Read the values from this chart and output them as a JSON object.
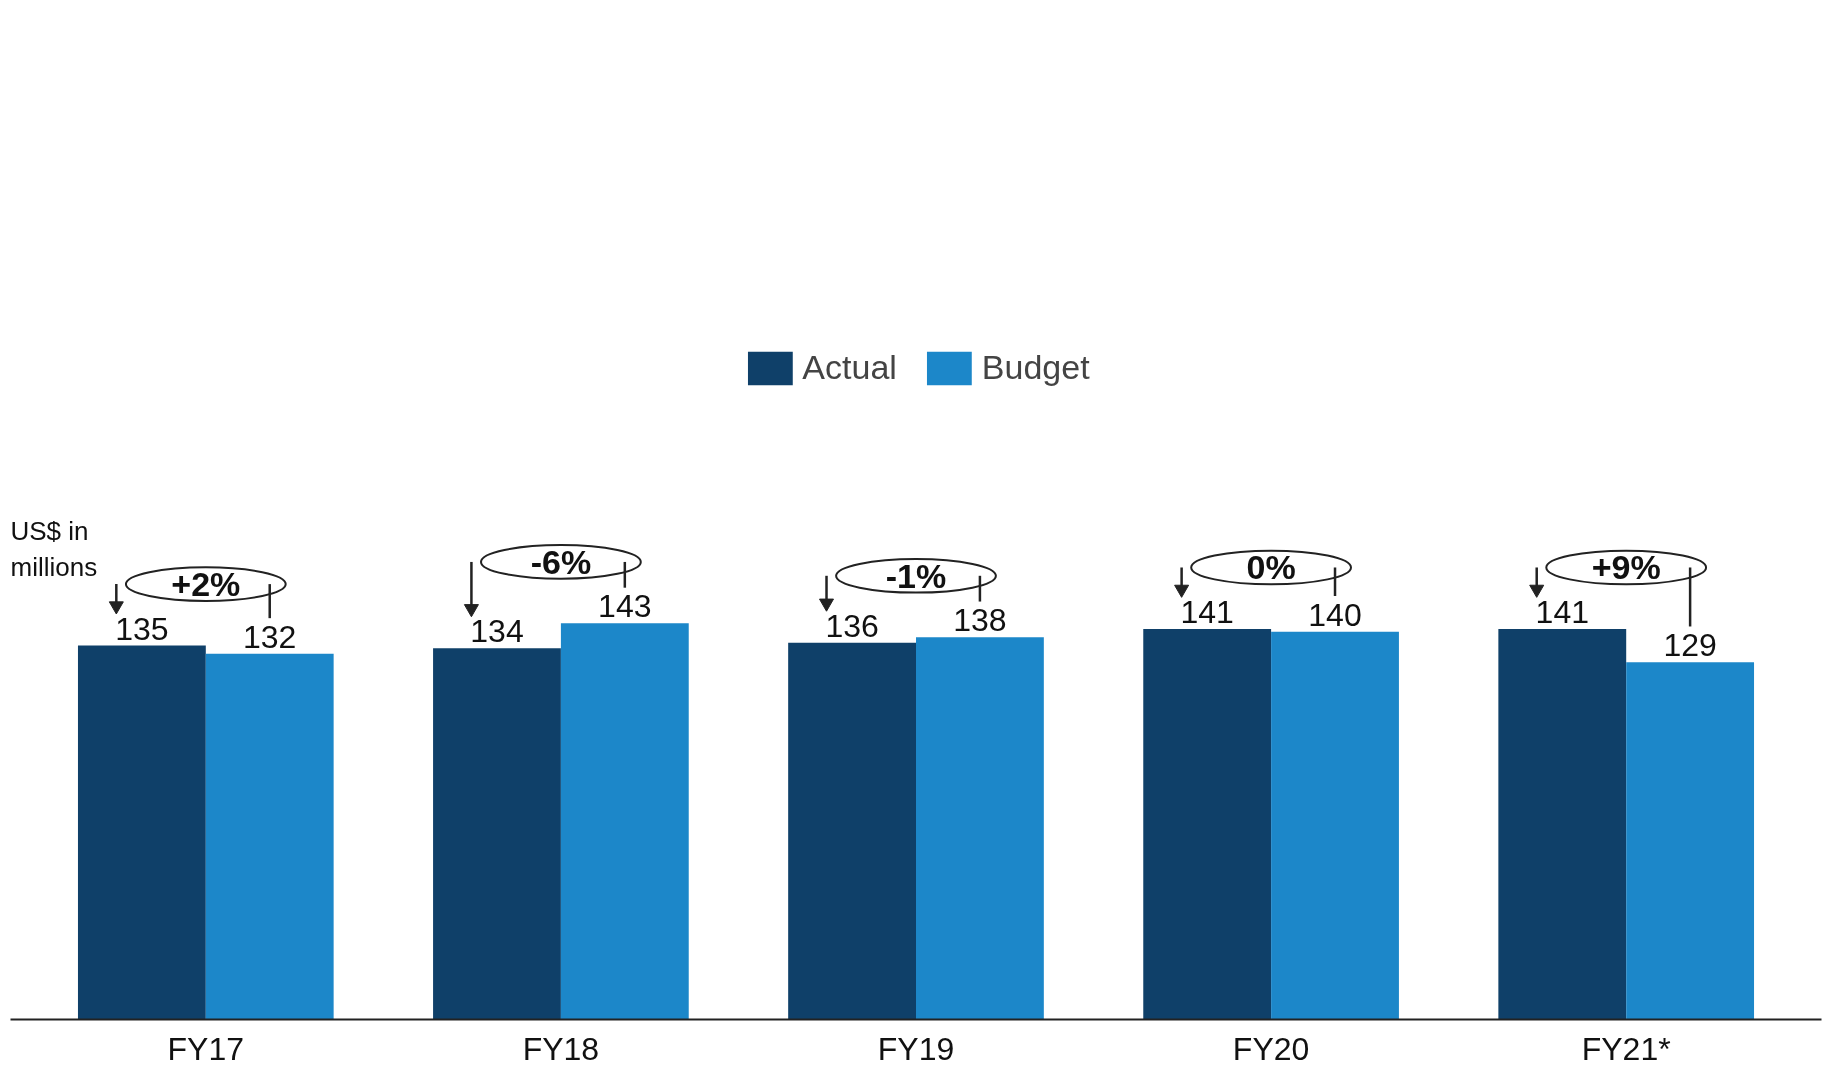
{
  "chart_data": {
    "type": "bar",
    "ylabel": "US$ in millions",
    "categories": [
      "FY17",
      "FY18",
      "FY19",
      "FY20",
      "FY21*"
    ],
    "series": [
      {
        "name": "Actual",
        "color": "#0f4069",
        "values": [
          135,
          134,
          136,
          141,
          141
        ]
      },
      {
        "name": "Budget",
        "color": "#1c87c9",
        "values": [
          132,
          143,
          138,
          140,
          129
        ]
      }
    ],
    "data_labels": true,
    "legend": "top",
    "tick_labels": "x",
    "annotations": [
      "+2%",
      "-6%",
      "-1%",
      "0%",
      "+9%"
    ]
  }
}
